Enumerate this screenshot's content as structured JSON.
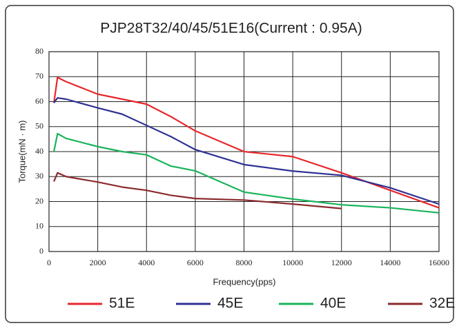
{
  "chart_data": {
    "type": "line",
    "title": "PJP28T32/40/45/51E16(Current : 0.95A)",
    "xlabel": "Frequency(pps)",
    "ylabel": "Torque(mN · m)",
    "xlim": [
      0,
      16000
    ],
    "ylim": [
      0,
      80
    ],
    "xticks": [
      0,
      2000,
      4000,
      6000,
      8000,
      10000,
      12000,
      14000,
      16000
    ],
    "yticks": [
      0,
      10,
      20,
      30,
      40,
      50,
      60,
      70,
      80
    ],
    "grid": true,
    "legend": "bottom",
    "series": [
      {
        "name": "51E",
        "color": "#e8262a",
        "x": [
          200,
          350,
          700,
          2000,
          4000,
          5000,
          6000,
          8000,
          10000,
          12000,
          16000
        ],
        "values": [
          59.5,
          69.7,
          68,
          63,
          59,
          54,
          48.3,
          40,
          38,
          31.5,
          17.5
        ]
      },
      {
        "name": "45E",
        "color": "#2e3192",
        "x": [
          200,
          350,
          700,
          2000,
          3000,
          4000,
          5000,
          6000,
          8000,
          10000,
          12000,
          14000,
          16000
        ],
        "values": [
          59.5,
          61.5,
          61,
          57.5,
          55,
          50.5,
          46,
          40.8,
          34.8,
          32.2,
          30.5,
          25.5,
          19
        ]
      },
      {
        "name": "40E",
        "color": "#19b35a",
        "x": [
          200,
          350,
          700,
          2000,
          3000,
          4000,
          5000,
          6000,
          8000,
          10000,
          12000,
          14000,
          16000
        ],
        "values": [
          40,
          47.2,
          45.3,
          42,
          40,
          38.7,
          34.2,
          32.3,
          23.8,
          21,
          18.7,
          17.5,
          15.5
        ]
      },
      {
        "name": "32E",
        "color": "#8b2a2e",
        "x": [
          200,
          350,
          700,
          2000,
          3000,
          4000,
          5000,
          6000,
          8000,
          10000,
          12000
        ],
        "values": [
          28,
          31.5,
          30,
          27.8,
          25.8,
          24.5,
          22.5,
          21.2,
          20.6,
          19,
          17.2
        ]
      }
    ]
  }
}
